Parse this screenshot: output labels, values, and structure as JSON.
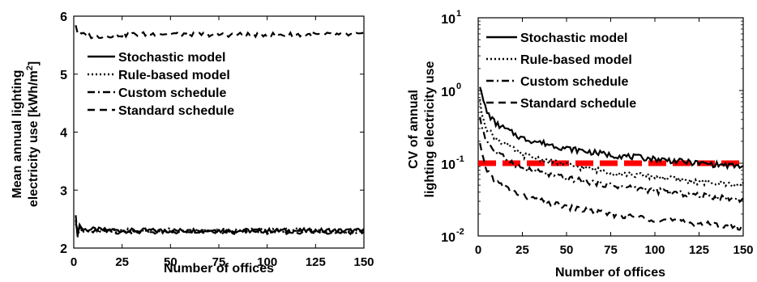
{
  "chart_data": [
    {
      "type": "line",
      "xlabel": "Number of offices",
      "ylabel_line1": "Mean annual lighting",
      "ylabel_line2_main": "electricity use [kWh/m",
      "ylabel_line2_sup": "2",
      "ylabel_line2_end": "]",
      "xlim": [
        0,
        150
      ],
      "ylim": [
        2,
        6
      ],
      "xticks": [
        0,
        25,
        50,
        75,
        100,
        125,
        150
      ],
      "yticks": [
        2,
        3,
        4,
        5,
        6
      ],
      "xtick_labels": [
        "0",
        "25",
        "50",
        "75",
        "100",
        "125",
        "150"
      ],
      "ytick_labels": [
        "2",
        "3",
        "4",
        "5",
        "6"
      ],
      "grid": false,
      "legend_position": "top-right",
      "series": [
        {
          "name": "Stochastic model",
          "style": "solid",
          "x": [
            1,
            2,
            3,
            5,
            10,
            25,
            50,
            75,
            100,
            125,
            150
          ],
          "y": [
            2.45,
            2.25,
            2.4,
            2.32,
            2.32,
            2.3,
            2.3,
            2.3,
            2.3,
            2.3,
            2.3
          ]
        },
        {
          "name": "Rule-based model",
          "style": "dotted",
          "x": [
            1,
            2,
            3,
            5,
            10,
            25,
            50,
            75,
            100,
            125,
            150
          ],
          "y": [
            2.4,
            2.3,
            2.35,
            2.3,
            2.3,
            2.3,
            2.3,
            2.3,
            2.3,
            2.3,
            2.3
          ]
        },
        {
          "name": "Custom schedule",
          "style": "dashdot",
          "x": [
            1,
            2,
            3,
            5,
            10,
            25,
            50,
            75,
            100,
            125,
            150
          ],
          "y": [
            2.6,
            2.2,
            2.35,
            2.28,
            2.28,
            2.28,
            2.28,
            2.28,
            2.28,
            2.28,
            2.28
          ]
        },
        {
          "name": "Standard schedule",
          "style": "dashed",
          "x": [
            1,
            2,
            3,
            5,
            10,
            25,
            50,
            75,
            100,
            125,
            150
          ],
          "y": [
            5.85,
            5.72,
            5.7,
            5.68,
            5.65,
            5.68,
            5.7,
            5.68,
            5.68,
            5.68,
            5.68
          ]
        }
      ]
    },
    {
      "type": "line",
      "xlabel": "Number of offices",
      "ylabel_line1": "CV of annual",
      "ylabel_line2": "lighting electricity use",
      "xlim": [
        0,
        150
      ],
      "ylim": [
        0.01,
        10
      ],
      "yscale": "log",
      "xticks": [
        0,
        25,
        50,
        75,
        100,
        125,
        150
      ],
      "xtick_labels": [
        "0",
        "25",
        "50",
        "75",
        "100",
        "125",
        "150"
      ],
      "yticks": [
        0.01,
        0.1,
        1,
        10
      ],
      "ytick_labels": [
        {
          "base": "10",
          "exp": "-2"
        },
        {
          "base": "10",
          "exp": "-1"
        },
        {
          "base": "10",
          "exp": "0"
        },
        {
          "base": "10",
          "exp": "1"
        }
      ],
      "grid": false,
      "legend_position": "top-right",
      "reference_line": {
        "y": 0.1,
        "color": "#ff0000",
        "style": "dashed"
      },
      "series": [
        {
          "name": "Stochastic model",
          "style": "solid",
          "x": [
            1,
            2,
            5,
            10,
            25,
            50,
            75,
            100,
            125,
            150
          ],
          "y": [
            1.2,
            0.85,
            0.5,
            0.35,
            0.22,
            0.16,
            0.13,
            0.115,
            0.1,
            0.09
          ]
        },
        {
          "name": "Rule-based model",
          "style": "dotted",
          "x": [
            1,
            2,
            5,
            10,
            25,
            50,
            75,
            100,
            125,
            150
          ],
          "y": [
            0.7,
            0.5,
            0.3,
            0.22,
            0.13,
            0.095,
            0.075,
            0.065,
            0.055,
            0.05
          ]
        },
        {
          "name": "Custom schedule",
          "style": "dashdot",
          "x": [
            1,
            2,
            5,
            10,
            25,
            50,
            75,
            100,
            125,
            150
          ],
          "y": [
            0.45,
            0.32,
            0.2,
            0.14,
            0.085,
            0.062,
            0.05,
            0.042,
            0.036,
            0.032
          ]
        },
        {
          "name": "Standard schedule",
          "style": "dashed",
          "x": [
            1,
            2,
            5,
            10,
            25,
            50,
            75,
            100,
            125,
            150
          ],
          "y": [
            0.18,
            0.13,
            0.08,
            0.055,
            0.035,
            0.025,
            0.02,
            0.017,
            0.015,
            0.013
          ]
        }
      ]
    }
  ]
}
